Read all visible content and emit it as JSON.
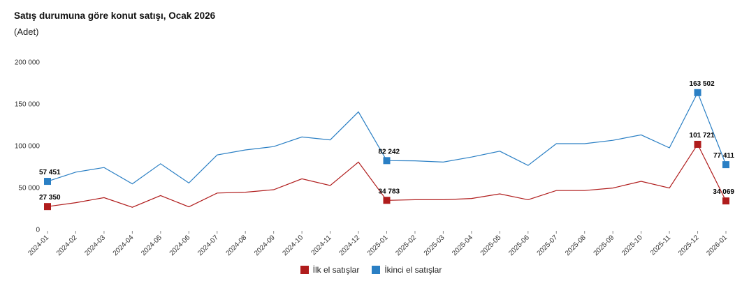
{
  "header": {
    "title": "Satış durumuna göre konut satışı, Ocak 2026",
    "subtitle": "(Adet)"
  },
  "chart_data": {
    "type": "line",
    "title": "Satış durumuna göre konut satışı, Ocak 2026",
    "ylabel": "(Adet)",
    "xlabel": "",
    "ylim": [
      0,
      200000
    ],
    "yticks": [
      0,
      50000,
      100000,
      150000,
      200000
    ],
    "ytick_labels": [
      "0",
      "50 000",
      "100 000",
      "150 000",
      "200 000"
    ],
    "grid": false,
    "legend_position": "bottom-center",
    "categories": [
      "2024-01",
      "2024-02",
      "2024-03",
      "2024-04",
      "2024-05",
      "2024-06",
      "2024-07",
      "2024-08",
      "2024-09",
      "2024-10",
      "2024-11",
      "2024-12",
      "2025-01",
      "2025-02",
      "2025-03",
      "2025-04",
      "2025-05",
      "2025-06",
      "2025-07",
      "2025-08",
      "2025-09",
      "2025-10",
      "2025-11",
      "2025-12",
      "2026-01"
    ],
    "series": [
      {
        "name": "İlk el satışlar",
        "color": "#b01c1c",
        "values": [
          27350,
          32000,
          38000,
          26500,
          40500,
          27000,
          43500,
          44500,
          47500,
          60500,
          52500,
          80500,
          34783,
          35500,
          35500,
          37000,
          42500,
          35500,
          46500,
          46500,
          49500,
          57500,
          49500,
          101721,
          34069
        ],
        "markers": [
          {
            "index": 0,
            "label": "27 350"
          },
          {
            "index": 12,
            "label": "34 783"
          },
          {
            "index": 23,
            "label": "101 721"
          },
          {
            "index": 24,
            "label": "34 069"
          }
        ]
      },
      {
        "name": "İkinci el satışlar",
        "color": "#2a7fc4",
        "values": [
          57451,
          68500,
          74000,
          54500,
          78500,
          55500,
          89000,
          95000,
          99000,
          110500,
          107000,
          140500,
          82242,
          82000,
          80500,
          86500,
          93500,
          76500,
          102500,
          102500,
          106500,
          113000,
          97500,
          163502,
          77411
        ],
        "markers": [
          {
            "index": 0,
            "label": "57 451"
          },
          {
            "index": 12,
            "label": "82 242"
          },
          {
            "index": 23,
            "label": "163 502"
          },
          {
            "index": 24,
            "label": "77 411"
          }
        ]
      }
    ]
  }
}
